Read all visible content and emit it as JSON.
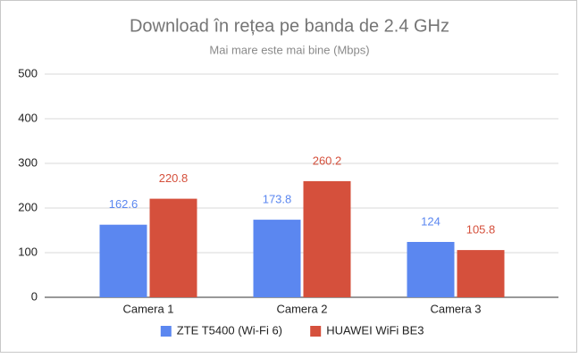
{
  "chart_data": {
    "type": "bar",
    "title": "Download în rețea pe banda de 2.4 GHz",
    "subtitle": "Mai mare este mai bine (Mbps)",
    "categories": [
      "Camera 1",
      "Camera 2",
      "Camera 3"
    ],
    "series": [
      {
        "name": "ZTE T5400 (Wi-Fi 6)",
        "color": "#5b87f0",
        "values": [
          162.6,
          173.8,
          124
        ]
      },
      {
        "name": "HUAWEI WiFi BE3",
        "color": "#d5503c",
        "values": [
          220.8,
          260.2,
          105.8
        ]
      }
    ],
    "ylim": [
      0,
      500
    ],
    "yticks": [
      0,
      100,
      200,
      300,
      400,
      500
    ],
    "grid": true,
    "legend": "bottom"
  }
}
